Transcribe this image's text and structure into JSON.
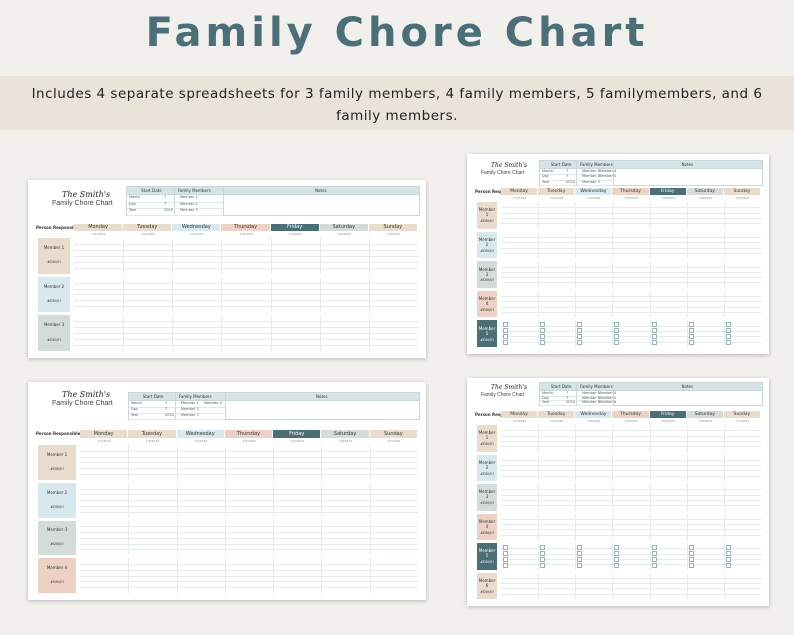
{
  "hero": {
    "title": "Family Chore Chart",
    "subtitle": "Includes 4 separate spreadsheets for 3 family members, 4 family members, 5 familymembers, and 6 family members."
  },
  "colors": {
    "title": "#4b6e77",
    "band": "#e9e3da",
    "teal_dark": "#4b6e77",
    "sand": "#e9dccd",
    "peach": "#ecd1c4",
    "blue": "#d7e8ee",
    "sage": "#d5dbd8"
  },
  "sheet": {
    "family_name": "The Smith's",
    "chart_title": "Family Chore Chart",
    "start_date_label": "Start Date",
    "family_members_label": "Family Members",
    "notes_label": "Notes",
    "month_label": "Month",
    "day_label": "Day",
    "year_label": "Year",
    "month_value": "7",
    "day_value": "7",
    "year_value": "2024",
    "person_responsible_label": "Person Responsible",
    "days": [
      "Monday",
      "Tuesday",
      "Wednesday",
      "Thursday",
      "Friday",
      "Saturday",
      "Sunday"
    ],
    "dates": [
      "7/1/2024",
      "7/2/2024",
      "7/3/2024",
      "7/4/2024",
      "7/5/2024",
      "7/6/2024",
      "7/7/2024"
    ],
    "members": [
      "Member 1",
      "Member 2",
      "Member 3",
      "Member 4",
      "Member 5",
      "Member 6"
    ],
    "pct_text": "#DIV/0!"
  }
}
